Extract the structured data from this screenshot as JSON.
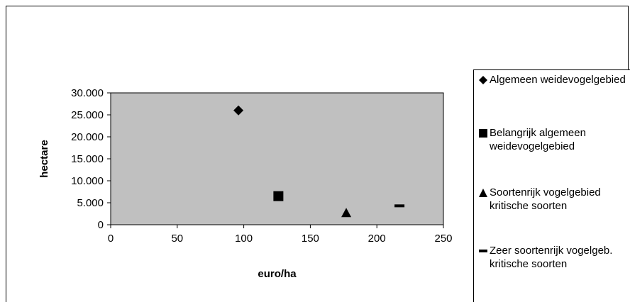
{
  "chart_data": {
    "type": "scatter",
    "xlabel": "euro/ha",
    "ylabel": "hectare",
    "xlim": [
      0,
      250
    ],
    "ylim": [
      0,
      30000
    ],
    "x_ticks": [
      "0",
      "50",
      "100",
      "150",
      "200",
      "250"
    ],
    "y_ticks": [
      "0",
      "5.000",
      "10.000",
      "15.000",
      "20.000",
      "25.000",
      "30.000"
    ],
    "grid": false,
    "plot_background": "#c0c0c0",
    "legend_position": "right",
    "series": [
      {
        "name": "Algemeen weidevogelgebied",
        "marker": "diamond",
        "x": [
          96
        ],
        "y": [
          26000
        ]
      },
      {
        "name": "Belangrijk algemeen weidevogelgebied",
        "marker": "square",
        "x": [
          126
        ],
        "y": [
          6500
        ]
      },
      {
        "name": "Soortenrijk vogelgebied kritische soorten",
        "marker": "triangle",
        "x": [
          177
        ],
        "y": [
          2700
        ]
      },
      {
        "name": "Zeer soortenrijk vogelgeb. kritische soorten",
        "marker": "dash",
        "x": [
          217
        ],
        "y": [
          4300
        ]
      }
    ]
  }
}
